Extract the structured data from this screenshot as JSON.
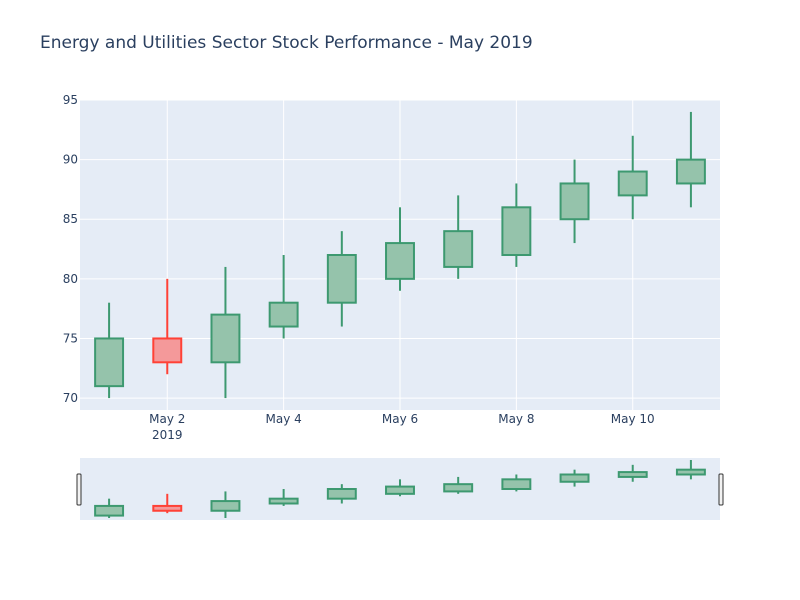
{
  "chart_data": {
    "type": "candlestick",
    "title": "Energy and Utilities Sector Stock Performance - May 2019",
    "xlabel": "",
    "ylabel": "",
    "x": [
      "2019-05-01",
      "2019-05-02",
      "2019-05-03",
      "2019-05-04",
      "2019-05-05",
      "2019-05-06",
      "2019-05-07",
      "2019-05-08",
      "2019-05-09",
      "2019-05-10",
      "2019-05-11"
    ],
    "open": [
      71,
      75,
      73,
      76,
      78,
      80,
      81,
      82,
      85,
      87,
      88
    ],
    "high": [
      78,
      80,
      81,
      82,
      84,
      86,
      87,
      88,
      90,
      92,
      94
    ],
    "low": [
      70,
      72,
      70,
      75,
      76,
      79,
      80,
      81,
      83,
      85,
      86
    ],
    "close": [
      75,
      73,
      77,
      78,
      82,
      83,
      84,
      86,
      88,
      89,
      90
    ],
    "ylim": [
      69,
      95
    ],
    "y_ticks": [
      70,
      75,
      80,
      85,
      90,
      95
    ],
    "x_ticks": [
      {
        "label": "May 2",
        "sublabel": "2019",
        "date": "2019-05-02"
      },
      {
        "label": "May 4",
        "sublabel": "",
        "date": "2019-05-04"
      },
      {
        "label": "May 6",
        "sublabel": "",
        "date": "2019-05-06"
      },
      {
        "label": "May 8",
        "sublabel": "",
        "date": "2019-05-08"
      },
      {
        "label": "May 10",
        "sublabel": "",
        "date": "2019-05-10"
      }
    ],
    "grid": true,
    "rangeslider": true,
    "colors": {
      "increasing_line": "#3d9970",
      "increasing_fill": "#95c3ab",
      "decreasing_line": "#ff4136",
      "decreasing_fill": "#f4999a",
      "plot_bg": "#e5ecf6",
      "grid": "#ffffff",
      "text": "#2a3f5f"
    }
  }
}
